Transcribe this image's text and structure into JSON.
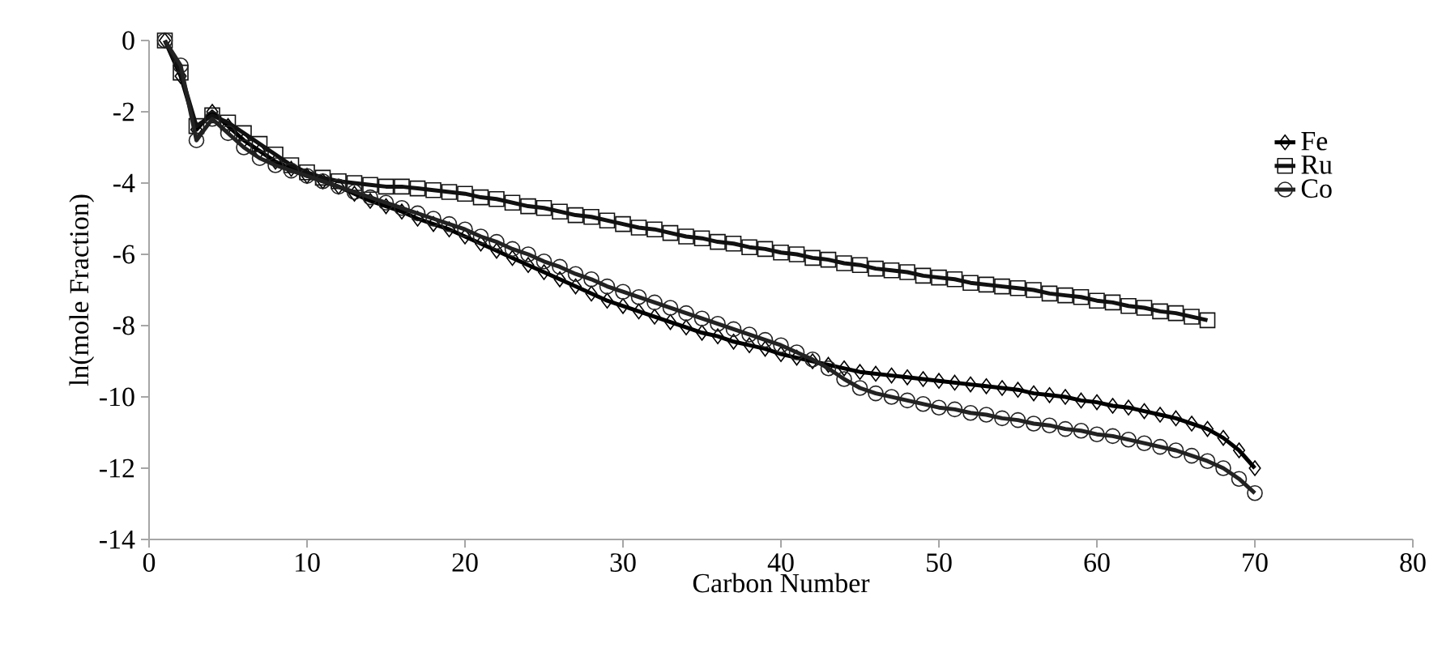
{
  "chart_data": {
    "type": "line",
    "xlabel": "Carbon Number",
    "ylabel": "ln(mole Fraction)",
    "xlim": [
      0,
      80
    ],
    "xticks": [
      0,
      10,
      20,
      30,
      40,
      50,
      60,
      70,
      80
    ],
    "ylim": [
      -14,
      0
    ],
    "yticks": [
      -14,
      -12,
      -10,
      -8,
      -6,
      -4,
      -2,
      0
    ],
    "grid": false,
    "legend": "right",
    "series": [
      {
        "name": "Fe",
        "color": "#000000",
        "marker": "diamond",
        "x": [
          1,
          2,
          3,
          4,
          5,
          6,
          7,
          8,
          9,
          10,
          11,
          12,
          13,
          14,
          15,
          16,
          17,
          18,
          19,
          20,
          21,
          22,
          23,
          24,
          25,
          26,
          27,
          28,
          29,
          30,
          31,
          32,
          33,
          34,
          35,
          36,
          37,
          38,
          39,
          40,
          41,
          42,
          43,
          44,
          45,
          46,
          47,
          48,
          49,
          50,
          51,
          52,
          53,
          54,
          55,
          56,
          57,
          58,
          59,
          60,
          61,
          62,
          63,
          64,
          65,
          66,
          67,
          68,
          69,
          70
        ],
        "values": [
          0,
          -1.0,
          -2.5,
          -2.0,
          -2.4,
          -2.8,
          -3.1,
          -3.4,
          -3.6,
          -3.8,
          -3.95,
          -4.1,
          -4.3,
          -4.5,
          -4.65,
          -4.8,
          -5.0,
          -5.15,
          -5.3,
          -5.5,
          -5.7,
          -5.9,
          -6.1,
          -6.3,
          -6.5,
          -6.7,
          -6.9,
          -7.1,
          -7.3,
          -7.45,
          -7.6,
          -7.75,
          -7.9,
          -8.05,
          -8.2,
          -8.3,
          -8.45,
          -8.55,
          -8.65,
          -8.8,
          -8.9,
          -9.0,
          -9.1,
          -9.2,
          -9.3,
          -9.35,
          -9.4,
          -9.45,
          -9.5,
          -9.55,
          -9.6,
          -9.65,
          -9.7,
          -9.75,
          -9.8,
          -9.9,
          -9.95,
          -10.0,
          -10.1,
          -10.15,
          -10.25,
          -10.3,
          -10.4,
          -10.5,
          -10.6,
          -10.75,
          -10.9,
          -11.15,
          -11.5,
          -12.0
        ]
      },
      {
        "name": "Ru",
        "color": "#111111",
        "marker": "square",
        "x": [
          1,
          2,
          3,
          4,
          5,
          6,
          7,
          8,
          9,
          10,
          11,
          12,
          13,
          14,
          15,
          16,
          17,
          18,
          19,
          20,
          21,
          22,
          23,
          24,
          25,
          26,
          27,
          28,
          29,
          30,
          31,
          32,
          33,
          34,
          35,
          36,
          37,
          38,
          39,
          40,
          41,
          42,
          43,
          44,
          45,
          46,
          47,
          48,
          49,
          50,
          51,
          52,
          53,
          54,
          55,
          56,
          57,
          58,
          59,
          60,
          61,
          62,
          63,
          64,
          65,
          66,
          67
        ],
        "values": [
          0,
          -0.9,
          -2.4,
          -2.1,
          -2.3,
          -2.6,
          -2.9,
          -3.2,
          -3.5,
          -3.7,
          -3.85,
          -3.95,
          -4.0,
          -4.05,
          -4.1,
          -4.1,
          -4.15,
          -4.2,
          -4.25,
          -4.3,
          -4.4,
          -4.45,
          -4.55,
          -4.65,
          -4.7,
          -4.8,
          -4.9,
          -4.95,
          -5.05,
          -5.15,
          -5.25,
          -5.3,
          -5.4,
          -5.5,
          -5.55,
          -5.65,
          -5.7,
          -5.8,
          -5.85,
          -5.95,
          -6.0,
          -6.1,
          -6.15,
          -6.25,
          -6.3,
          -6.4,
          -6.45,
          -6.5,
          -6.6,
          -6.65,
          -6.7,
          -6.8,
          -6.85,
          -6.9,
          -6.95,
          -7.0,
          -7.1,
          -7.15,
          -7.2,
          -7.3,
          -7.35,
          -7.45,
          -7.5,
          -7.6,
          -7.65,
          -7.75,
          -7.85
        ]
      },
      {
        "name": "Co",
        "color": "#222222",
        "marker": "circle",
        "x": [
          1,
          2,
          3,
          4,
          5,
          6,
          7,
          8,
          9,
          10,
          11,
          12,
          13,
          14,
          15,
          16,
          17,
          18,
          19,
          20,
          21,
          22,
          23,
          24,
          25,
          26,
          27,
          28,
          29,
          30,
          31,
          32,
          33,
          34,
          35,
          36,
          37,
          38,
          39,
          40,
          41,
          42,
          43,
          44,
          45,
          46,
          47,
          48,
          49,
          50,
          51,
          52,
          53,
          54,
          55,
          56,
          57,
          58,
          59,
          60,
          61,
          62,
          63,
          64,
          65,
          66,
          67,
          68,
          69,
          70
        ],
        "values": [
          0,
          -0.7,
          -2.8,
          -2.2,
          -2.6,
          -3.0,
          -3.3,
          -3.5,
          -3.65,
          -3.8,
          -3.95,
          -4.1,
          -4.25,
          -4.4,
          -4.55,
          -4.7,
          -4.85,
          -5.0,
          -5.15,
          -5.3,
          -5.5,
          -5.65,
          -5.85,
          -6.0,
          -6.2,
          -6.35,
          -6.55,
          -6.7,
          -6.9,
          -7.05,
          -7.2,
          -7.35,
          -7.5,
          -7.65,
          -7.8,
          -7.95,
          -8.1,
          -8.25,
          -8.4,
          -8.55,
          -8.75,
          -8.95,
          -9.2,
          -9.5,
          -9.75,
          -9.9,
          -10.0,
          -10.1,
          -10.2,
          -10.3,
          -10.35,
          -10.45,
          -10.5,
          -10.6,
          -10.65,
          -10.75,
          -10.8,
          -10.9,
          -10.95,
          -11.05,
          -11.1,
          -11.2,
          -11.3,
          -11.4,
          -11.5,
          -11.65,
          -11.8,
          -12.0,
          -12.3,
          -12.7
        ]
      }
    ]
  }
}
